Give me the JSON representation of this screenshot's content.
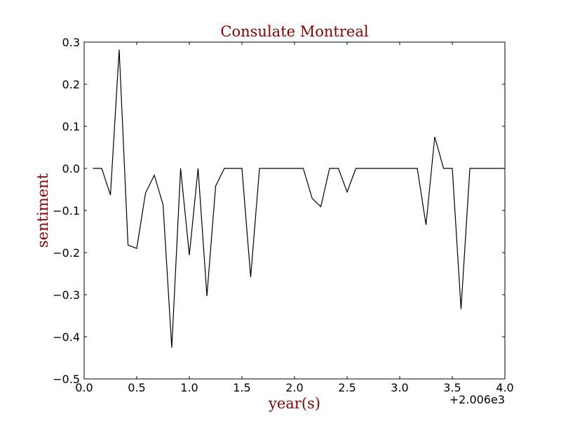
{
  "chart_data": {
    "type": "line",
    "title": "Consulate Montreal",
    "xlabel": "year(s)",
    "ylabel": "sentiment",
    "x_offset_label": "+2.006e3",
    "xlim": [
      0.0,
      4.0
    ],
    "ylim": [
      -0.5,
      0.3
    ],
    "x_ticks": [
      0.0,
      0.5,
      1.0,
      1.5,
      2.0,
      2.5,
      3.0,
      3.5,
      4.0
    ],
    "x_tick_labels": [
      "0.0",
      "0.5",
      "1.0",
      "1.5",
      "2.0",
      "2.5",
      "3.0",
      "3.5",
      "4.0"
    ],
    "y_ticks": [
      0.3,
      0.2,
      0.1,
      0.0,
      -0.1,
      -0.2,
      -0.3,
      -0.4,
      -0.5
    ],
    "y_tick_labels": [
      "0.3",
      "0.2",
      "0.1",
      "0.0",
      "−0.1",
      "−0.2",
      "−0.3",
      "−0.4",
      "−0.5"
    ],
    "grid": false,
    "series": [
      {
        "color": "#000000",
        "x": [
          0.083,
          0.167,
          0.25,
          0.333,
          0.417,
          0.5,
          0.583,
          0.667,
          0.75,
          0.833,
          0.917,
          1.0,
          1.083,
          1.167,
          1.25,
          1.333,
          1.417,
          1.5,
          1.583,
          1.667,
          1.75,
          1.833,
          1.917,
          2.0,
          2.083,
          2.167,
          2.25,
          2.333,
          2.417,
          2.5,
          2.583,
          2.667,
          2.75,
          2.833,
          2.917,
          3.0,
          3.083,
          3.167,
          3.25,
          3.333,
          3.417,
          3.5,
          3.583,
          3.667,
          3.75,
          3.833,
          3.917,
          4.0
        ],
        "values": [
          0.0,
          0.0,
          -0.063,
          0.282,
          -0.182,
          -0.19,
          -0.059,
          -0.016,
          -0.086,
          -0.426,
          0.0,
          -0.206,
          0.0,
          -0.303,
          -0.042,
          0.0,
          0.0,
          0.0,
          -0.258,
          0.0,
          0.0,
          0.0,
          0.0,
          0.0,
          0.0,
          -0.071,
          -0.091,
          0.0,
          0.0,
          -0.056,
          0.0,
          0.0,
          0.0,
          0.0,
          0.0,
          0.0,
          0.0,
          0.0,
          -0.134,
          0.075,
          0.0,
          0.0,
          -0.334,
          0.0,
          0.0,
          0.0,
          0.0,
          0.0
        ]
      }
    ]
  }
}
